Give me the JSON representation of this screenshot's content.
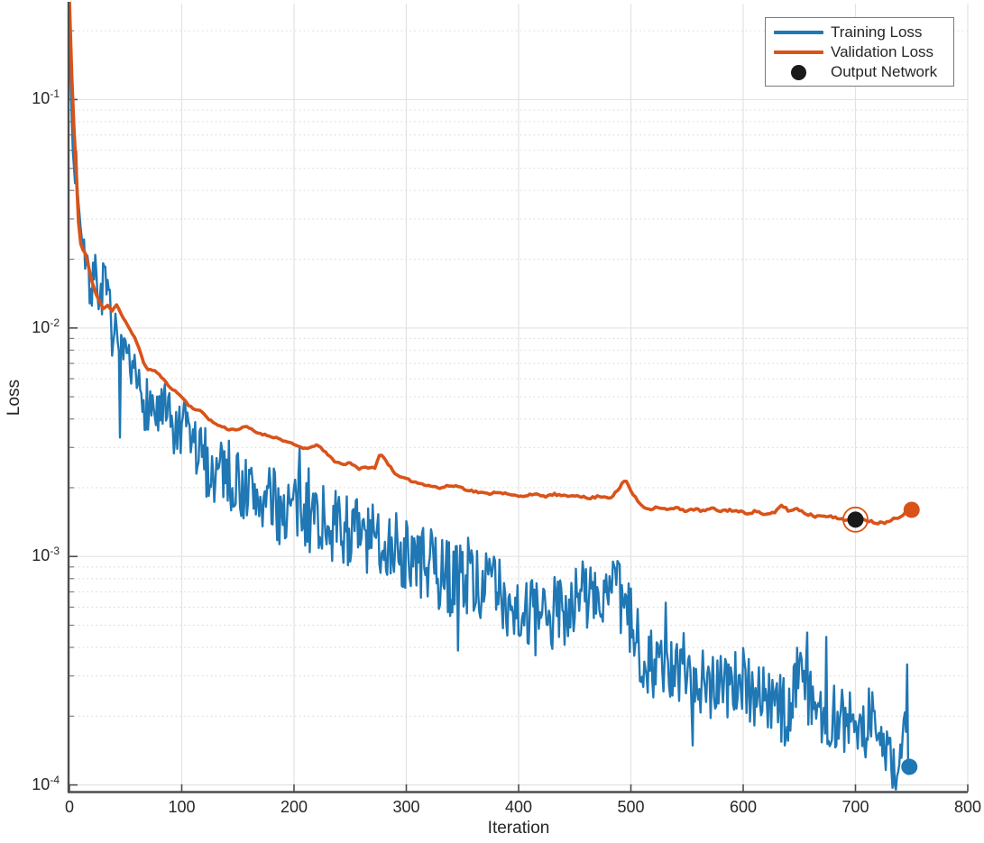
{
  "chart_data": {
    "type": "line",
    "title": "",
    "xlabel": "Iteration",
    "ylabel": "Loss",
    "x_axis": {
      "lim": [
        0,
        800
      ],
      "ticks": [
        0,
        100,
        200,
        300,
        400,
        500,
        600,
        700,
        800
      ]
    },
    "y_axis": {
      "scale": "log",
      "lim": [
        9.35e-05,
        0.263
      ],
      "ticks": [
        {
          "v": 0.0001,
          "base": "10",
          "exp": "-4"
        },
        {
          "v": 0.001,
          "base": "10",
          "exp": "-3"
        },
        {
          "v": 0.01,
          "base": "10",
          "exp": "-2"
        },
        {
          "v": 0.1,
          "base": "10",
          "exp": "-1"
        }
      ]
    },
    "grid": {
      "major": true,
      "minor_dotted": true
    },
    "legend": {
      "position": "top-right",
      "items": [
        {
          "label": "Training Loss",
          "type": "line",
          "color": "#1f77b4"
        },
        {
          "label": "Validation Loss",
          "type": "line",
          "color": "#d95319"
        },
        {
          "label": "Output Network",
          "type": "marker",
          "color": "#1a1a1a"
        }
      ]
    },
    "series": [
      {
        "name": "training-loss",
        "label": "Training Loss",
        "color": "#1f77b4",
        "width": 2.4,
        "step": 1,
        "range": [
          0,
          748
        ],
        "noise": {
          "seed": 7,
          "spike_prob": 0.04,
          "spike_amp": 0.3,
          "amp_anchors": [
            [
              0,
              0.02
            ],
            [
              5,
              0.06
            ],
            [
              12,
              0.09
            ],
            [
              20,
              0.12
            ],
            [
              60,
              0.13
            ],
            [
              120,
              0.15
            ],
            [
              250,
              0.17
            ],
            [
              450,
              0.17
            ],
            [
              600,
              0.16
            ],
            [
              748,
              0.13
            ]
          ]
        },
        "anchors": [
          [
            0,
            0.27
          ],
          [
            1,
            0.12
          ],
          [
            2,
            0.085
          ],
          [
            3,
            0.06
          ],
          [
            4,
            0.05
          ],
          [
            5,
            0.046
          ],
          [
            6,
            0.055
          ],
          [
            8,
            0.038
          ],
          [
            10,
            0.03
          ],
          [
            12,
            0.026
          ],
          [
            14,
            0.022
          ],
          [
            16,
            0.019
          ],
          [
            19,
            0.016
          ],
          [
            22,
            0.017
          ],
          [
            25,
            0.015
          ],
          [
            28,
            0.0145
          ],
          [
            31,
            0.0155
          ],
          [
            34,
            0.013
          ],
          [
            37,
            0.0105
          ],
          [
            40,
            0.0092
          ],
          [
            43,
            0.008
          ],
          [
            46,
            0.0072
          ],
          [
            50,
            0.0066
          ],
          [
            54,
            0.0062
          ],
          [
            58,
            0.0057
          ],
          [
            62,
            0.0053
          ],
          [
            66,
            0.0049
          ],
          [
            70,
            0.0047
          ],
          [
            75,
            0.0044
          ],
          [
            80,
            0.0041
          ],
          [
            85,
            0.0042
          ],
          [
            90,
            0.0037
          ],
          [
            95,
            0.0034
          ],
          [
            100,
            0.0033
          ],
          [
            105,
            0.0037
          ],
          [
            110,
            0.0031
          ],
          [
            115,
            0.0028
          ],
          [
            120,
            0.0027
          ],
          [
            125,
            0.0024
          ],
          [
            130,
            0.0023
          ],
          [
            135,
            0.0026
          ],
          [
            140,
            0.0024
          ],
          [
            145,
            0.0021
          ],
          [
            150,
            0.0021
          ],
          [
            160,
            0.0019
          ],
          [
            170,
            0.0018
          ],
          [
            180,
            0.0017
          ],
          [
            190,
            0.0016
          ],
          [
            200,
            0.00165
          ],
          [
            210,
            0.0015
          ],
          [
            220,
            0.00155
          ],
          [
            230,
            0.0014
          ],
          [
            240,
            0.0013
          ],
          [
            250,
            0.00135
          ],
          [
            260,
            0.0012
          ],
          [
            270,
            0.00115
          ],
          [
            280,
            0.0012
          ],
          [
            290,
            0.0011
          ],
          [
            300,
            0.001
          ],
          [
            310,
            0.00095
          ],
          [
            320,
            0.0009
          ],
          [
            330,
            0.00085
          ],
          [
            340,
            0.0008
          ],
          [
            350,
            0.00085
          ],
          [
            360,
            0.0008
          ],
          [
            370,
            0.00075
          ],
          [
            380,
            0.0007
          ],
          [
            390,
            0.00065
          ],
          [
            400,
            0.0006
          ],
          [
            410,
            0.00055
          ],
          [
            420,
            0.0005
          ],
          [
            430,
            0.00055
          ],
          [
            440,
            0.0006
          ],
          [
            450,
            0.00065
          ],
          [
            460,
            0.0007
          ],
          [
            470,
            0.00065
          ],
          [
            480,
            0.0007
          ],
          [
            490,
            0.00065
          ],
          [
            500,
            0.0005
          ],
          [
            510,
            0.00038
          ],
          [
            520,
            0.00035
          ],
          [
            530,
            0.00032
          ],
          [
            540,
            0.0003
          ],
          [
            550,
            0.00033
          ],
          [
            560,
            0.0003
          ],
          [
            570,
            0.00028
          ],
          [
            580,
            0.0003
          ],
          [
            590,
            0.00028
          ],
          [
            600,
            0.00027
          ],
          [
            610,
            0.00026
          ],
          [
            620,
            0.00024
          ],
          [
            630,
            0.00022
          ],
          [
            640,
            0.0002
          ],
          [
            645,
            0.00026
          ],
          [
            650,
            0.0004
          ],
          [
            656,
            0.00026
          ],
          [
            665,
            0.00022
          ],
          [
            675,
            0.0002
          ],
          [
            685,
            0.000195
          ],
          [
            695,
            0.000185
          ],
          [
            702,
            0.00018
          ],
          [
            708,
            0.00017
          ],
          [
            714,
            0.00021
          ],
          [
            720,
            0.00016
          ],
          [
            726,
            0.00015
          ],
          [
            731,
            0.00013
          ],
          [
            736,
            0.000105
          ],
          [
            741,
            0.00016
          ],
          [
            745,
            0.00018
          ],
          [
            748,
            0.00012
          ]
        ]
      },
      {
        "name": "validation-loss",
        "label": "Validation Loss",
        "color": "#d95319",
        "width": 3.6,
        "step": 2,
        "range": [
          0,
          750
        ],
        "noise": {
          "seed": 11,
          "spike_prob": 0,
          "spike_amp": 0,
          "amp_anchors": [
            [
              0,
              0.003
            ],
            [
              750,
              0.006
            ]
          ]
        },
        "anchors": [
          [
            0,
            0.27
          ],
          [
            1,
            0.19
          ],
          [
            2,
            0.13
          ],
          [
            3,
            0.1
          ],
          [
            4,
            0.075
          ],
          [
            5,
            0.06
          ],
          [
            6,
            0.049
          ],
          [
            7,
            0.037
          ],
          [
            8,
            0.029
          ],
          [
            9,
            0.0243
          ],
          [
            11,
            0.0225
          ],
          [
            13,
            0.0218
          ],
          [
            15,
            0.0207
          ],
          [
            17,
            0.0185
          ],
          [
            20,
            0.016
          ],
          [
            23,
            0.0143
          ],
          [
            26,
            0.0133
          ],
          [
            30,
            0.0122
          ],
          [
            34,
            0.0126
          ],
          [
            38,
            0.0119
          ],
          [
            42,
            0.0127
          ],
          [
            46,
            0.0115
          ],
          [
            50,
            0.0106
          ],
          [
            54,
            0.0098
          ],
          [
            58,
            0.0091
          ],
          [
            62,
            0.0082
          ],
          [
            66,
            0.007
          ],
          [
            70,
            0.0066
          ],
          [
            76,
            0.0065
          ],
          [
            82,
            0.0061
          ],
          [
            88,
            0.0056
          ],
          [
            94,
            0.0053
          ],
          [
            100,
            0.005
          ],
          [
            106,
            0.0046
          ],
          [
            112,
            0.0044
          ],
          [
            118,
            0.0043
          ],
          [
            124,
            0.004
          ],
          [
            130,
            0.0038
          ],
          [
            136,
            0.0037
          ],
          [
            142,
            0.0036
          ],
          [
            150,
            0.0036
          ],
          [
            158,
            0.0037
          ],
          [
            166,
            0.0035
          ],
          [
            175,
            0.0034
          ],
          [
            185,
            0.0033
          ],
          [
            195,
            0.00315
          ],
          [
            205,
            0.00302
          ],
          [
            213,
            0.00295
          ],
          [
            220,
            0.0031
          ],
          [
            228,
            0.00285
          ],
          [
            236,
            0.00262
          ],
          [
            244,
            0.00252
          ],
          [
            250,
            0.00258
          ],
          [
            258,
            0.00242
          ],
          [
            266,
            0.00246
          ],
          [
            272,
            0.00243
          ],
          [
            277,
            0.00285
          ],
          [
            284,
            0.00253
          ],
          [
            292,
            0.00225
          ],
          [
            300,
            0.00218
          ],
          [
            310,
            0.0021
          ],
          [
            320,
            0.00205
          ],
          [
            330,
            0.00199
          ],
          [
            338,
            0.00204
          ],
          [
            346,
            0.00203
          ],
          [
            354,
            0.00196
          ],
          [
            362,
            0.00192
          ],
          [
            372,
            0.00188
          ],
          [
            382,
            0.00192
          ],
          [
            392,
            0.00186
          ],
          [
            402,
            0.00183
          ],
          [
            412,
            0.00188
          ],
          [
            422,
            0.00183
          ],
          [
            432,
            0.00187
          ],
          [
            442,
            0.00183
          ],
          [
            452,
            0.00186
          ],
          [
            462,
            0.00179
          ],
          [
            472,
            0.00184
          ],
          [
            482,
            0.00181
          ],
          [
            489,
            0.00196
          ],
          [
            495,
            0.00218
          ],
          [
            502,
            0.00186
          ],
          [
            509,
            0.00168
          ],
          [
            516,
            0.00161
          ],
          [
            524,
            0.00165
          ],
          [
            532,
            0.0016
          ],
          [
            540,
            0.00163
          ],
          [
            548,
            0.00159
          ],
          [
            556,
            0.00161
          ],
          [
            564,
            0.00158
          ],
          [
            572,
            0.00162
          ],
          [
            580,
            0.00158
          ],
          [
            588,
            0.0016
          ],
          [
            596,
            0.00157
          ],
          [
            604,
            0.00155
          ],
          [
            612,
            0.00158
          ],
          [
            620,
            0.00152
          ],
          [
            628,
            0.00155
          ],
          [
            634,
            0.00168
          ],
          [
            641,
            0.00158
          ],
          [
            648,
            0.00162
          ],
          [
            656,
            0.00154
          ],
          [
            664,
            0.0015
          ],
          [
            672,
            0.00152
          ],
          [
            680,
            0.00148
          ],
          [
            688,
            0.00146
          ],
          [
            695,
            0.00144
          ],
          [
            700,
            0.00145
          ],
          [
            706,
            0.00148
          ],
          [
            712,
            0.00143
          ],
          [
            718,
            0.00141
          ],
          [
            724,
            0.0014
          ],
          [
            730,
            0.00144
          ],
          [
            736,
            0.00147
          ],
          [
            742,
            0.00153
          ],
          [
            747,
            0.00159
          ],
          [
            750,
            0.0016
          ]
        ]
      }
    ],
    "markers": [
      {
        "name": "output-network-marker",
        "label": "Output Network",
        "x": 700,
        "y": 0.00145,
        "r": 9,
        "fill": "#1a1a1a",
        "ring_color": "#d95319",
        "ring_r": 13.5
      },
      {
        "name": "validation-end-marker",
        "x": 750,
        "y": 0.0016,
        "r": 9,
        "fill": "#d95319"
      },
      {
        "name": "training-end-marker",
        "x": 748,
        "y": 0.00012,
        "r": 9,
        "fill": "#1f77b4"
      }
    ],
    "colors": {
      "axis": "#4d4d4d",
      "grid_major": "#e3e3e3",
      "grid_minor": "#d9d9d9",
      "minor_tick": "#808080",
      "text": "#262626",
      "legend_border": "#7a7a7a",
      "background": "#ffffff"
    }
  }
}
